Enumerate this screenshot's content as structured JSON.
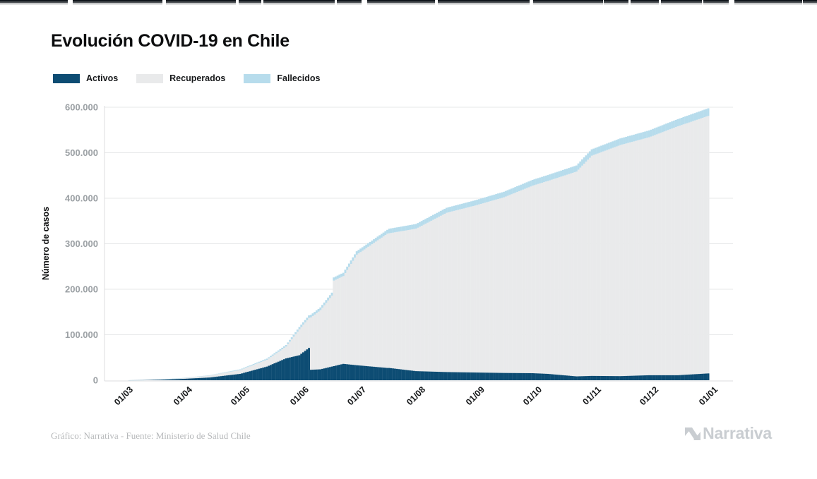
{
  "title": "Evolución COVID-19 en Chile",
  "legend": {
    "items": [
      {
        "label": "Activos",
        "color": "#0d4c73"
      },
      {
        "label": "Recuperados",
        "color": "#e9eaeb"
      },
      {
        "label": "Fallecidos",
        "color": "#b7dcec"
      }
    ]
  },
  "footer": {
    "credit": "Gráfico: Narrativa - Fuente: Ministerio de Salud Chile",
    "brand": "Narrativa"
  },
  "colors": {
    "activos": "#0d4c73",
    "recuperados": "#e9eaeb",
    "fallecidos": "#b7dcec",
    "grid": "#e7e8e9",
    "axis_line": "#dcdddf",
    "y_tick_text": "#9ba0a4",
    "x_tick_text": "#16181a",
    "axis_title_text": "#0c0d0e"
  },
  "chart_data": {
    "type": "area",
    "stacked": true,
    "title": "Evolución COVID-19 en Chile",
    "xlabel": "",
    "ylabel": "Número de casos",
    "ylim": [
      0,
      600000
    ],
    "grid": "horizontal",
    "legend_position": "top-left",
    "y_ticks": [
      {
        "value": 0,
        "label": "0"
      },
      {
        "value": 100000,
        "label": "100.000"
      },
      {
        "value": 200000,
        "label": "200.000"
      },
      {
        "value": 300000,
        "label": "300.000"
      },
      {
        "value": 400000,
        "label": "400.000"
      },
      {
        "value": 500000,
        "label": "500.000"
      },
      {
        "value": 600000,
        "label": "600.000"
      }
    ],
    "x_ticks": [
      {
        "day": 0,
        "label": "01/03"
      },
      {
        "day": 31,
        "label": "01/04"
      },
      {
        "day": 61,
        "label": "01/05"
      },
      {
        "day": 92,
        "label": "01/06"
      },
      {
        "day": 122,
        "label": "01/07"
      },
      {
        "day": 153,
        "label": "01/08"
      },
      {
        "day": 184,
        "label": "01/09"
      },
      {
        "day": 214,
        "label": "01/10"
      },
      {
        "day": 245,
        "label": "01/11"
      },
      {
        "day": 275,
        "label": "01/12"
      },
      {
        "day": 306,
        "label": "01/01"
      }
    ],
    "series": [
      {
        "name": "Activos",
        "key": "activos",
        "color": "#0d4c73"
      },
      {
        "name": "Recuperados",
        "key": "recuperados",
        "color": "#e9eaeb"
      },
      {
        "name": "Fallecidos",
        "key": "fallecidos",
        "color": "#b7dcec"
      }
    ],
    "keypoints": [
      {
        "day": 2,
        "activos": 10,
        "recuperados": 0,
        "fallecidos": 0
      },
      {
        "day": 10,
        "activos": 300,
        "recuperados": 50,
        "fallecidos": 2
      },
      {
        "day": 20,
        "activos": 1400,
        "recuperados": 400,
        "fallecidos": 10
      },
      {
        "day": 31,
        "activos": 3000,
        "recuperados": 1800,
        "fallecidos": 200
      },
      {
        "day": 45,
        "activos": 6000,
        "recuperados": 4600,
        "fallecidos": 400
      },
      {
        "day": 61,
        "activos": 14000,
        "recuperados": 8500,
        "fallecidos": 1500
      },
      {
        "day": 75,
        "activos": 30000,
        "recuperados": 15000,
        "fallecidos": 2500
      },
      {
        "day": 85,
        "activos": 48000,
        "recuperados": 26000,
        "fallecidos": 3500
      },
      {
        "day": 92,
        "activos": 55000,
        "recuperados": 57000,
        "fallecidos": 5000
      },
      {
        "day": 97,
        "activos": 71000,
        "recuperados": 66000,
        "fallecidos": 5500
      },
      {
        "day": 98,
        "activos": 23000,
        "recuperados": 115000,
        "fallecidos": 5700
      },
      {
        "day": 103,
        "activos": 24000,
        "recuperados": 130000,
        "fallecidos": 6000
      },
      {
        "day": 109,
        "activos": 30000,
        "recuperados": 156000,
        "fallecidos": 6500
      },
      {
        "day": 110,
        "activos": 31000,
        "recuperados": 188000,
        "fallecidos": 7000
      },
      {
        "day": 115,
        "activos": 36000,
        "recuperados": 193000,
        "fallecidos": 7200
      },
      {
        "day": 122,
        "activos": 33000,
        "recuperados": 243000,
        "fallecidos": 7500
      },
      {
        "day": 138,
        "activos": 27000,
        "recuperados": 295000,
        "fallecidos": 8500
      },
      {
        "day": 139,
        "activos": 27000,
        "recuperados": 296000,
        "fallecidos": 10000
      },
      {
        "day": 153,
        "activos": 20000,
        "recuperados": 313000,
        "fallecidos": 10300
      },
      {
        "day": 169,
        "activos": 18000,
        "recuperados": 350000,
        "fallecidos": 11000
      },
      {
        "day": 184,
        "activos": 17000,
        "recuperados": 367000,
        "fallecidos": 11500
      },
      {
        "day": 199,
        "activos": 16000,
        "recuperados": 386000,
        "fallecidos": 12200
      },
      {
        "day": 214,
        "activos": 15500,
        "recuperados": 412000,
        "fallecidos": 12800
      },
      {
        "day": 222,
        "activos": 14000,
        "recuperados": 424000,
        "fallecidos": 13000
      },
      {
        "day": 237,
        "activos": 8500,
        "recuperados": 450000,
        "fallecidos": 13500
      },
      {
        "day": 245,
        "activos": 9500,
        "recuperados": 484000,
        "fallecidos": 14000
      },
      {
        "day": 260,
        "activos": 9000,
        "recuperados": 508000,
        "fallecidos": 14500
      },
      {
        "day": 275,
        "activos": 11000,
        "recuperados": 523000,
        "fallecidos": 15000
      },
      {
        "day": 290,
        "activos": 11000,
        "recuperados": 547000,
        "fallecidos": 15800
      },
      {
        "day": 306,
        "activos": 15000,
        "recuperados": 566000,
        "fallecidos": 16700
      }
    ]
  }
}
